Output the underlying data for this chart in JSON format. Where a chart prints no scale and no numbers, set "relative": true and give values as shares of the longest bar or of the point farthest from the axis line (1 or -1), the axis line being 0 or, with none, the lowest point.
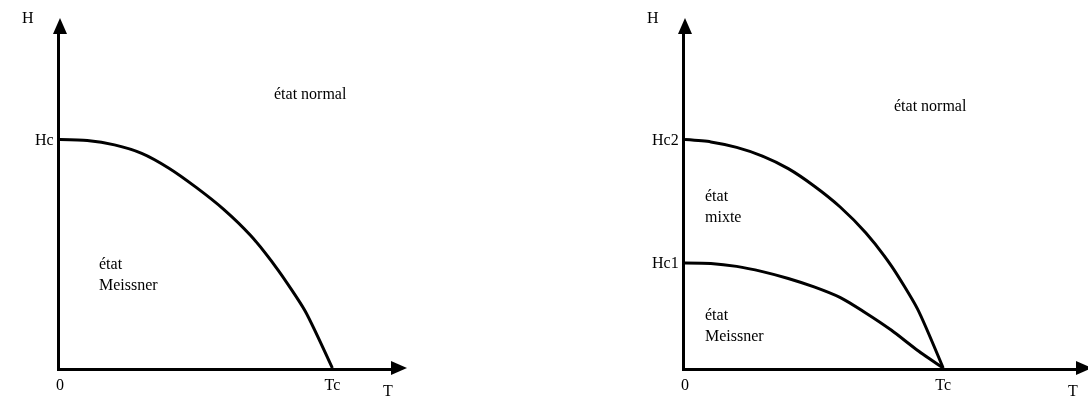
{
  "chart_data": [
    {
      "type": "line",
      "relative": true,
      "xlabel": "T",
      "ylabel": "H",
      "categories": [
        "0",
        null,
        null,
        null,
        null,
        null,
        null,
        null,
        null,
        null,
        "Tc",
        null,
        null
      ],
      "grid": false,
      "legend": false,
      "marker": "none",
      "line_style": "solid",
      "annotations": [
        "état normal",
        "état\nMeissner",
        "Hc"
      ],
      "series": [
        {
          "color": "#000000",
          "values": [
            1,
            0.996,
            0.977,
            0.94,
            0.875,
            0.791,
            0.696,
            0.58,
            0.43,
            0.25,
            0,
            null,
            null
          ]
        }
      ]
    },
    {
      "type": "line",
      "relative": true,
      "xlabel": "T",
      "ylabel": "H",
      "categories": [
        "0",
        null,
        null,
        null,
        null,
        null,
        null,
        null,
        null,
        null,
        "Tc",
        null,
        null,
        null,
        null,
        null
      ],
      "grid": false,
      "legend": false,
      "marker": "none",
      "line_style": "solid",
      "annotations": [
        "état normal",
        "état\nmixte",
        "état\nMeissner",
        "Hc2",
        "Hc1"
      ],
      "series": [
        {
          "color": "#000000",
          "values": [
            1,
            0.99,
            0.966,
            0.928,
            0.873,
            0.797,
            0.706,
            0.592,
            0.446,
            0.26,
            0,
            null,
            null,
            null,
            null,
            null
          ]
        },
        {
          "color": "#000000",
          "values": [
            0.46,
            0.458,
            0.445,
            0.422,
            0.392,
            0.355,
            0.309,
            0.241,
            0.165,
            0.078,
            0,
            null,
            null,
            null,
            null,
            null
          ]
        }
      ]
    }
  ]
}
